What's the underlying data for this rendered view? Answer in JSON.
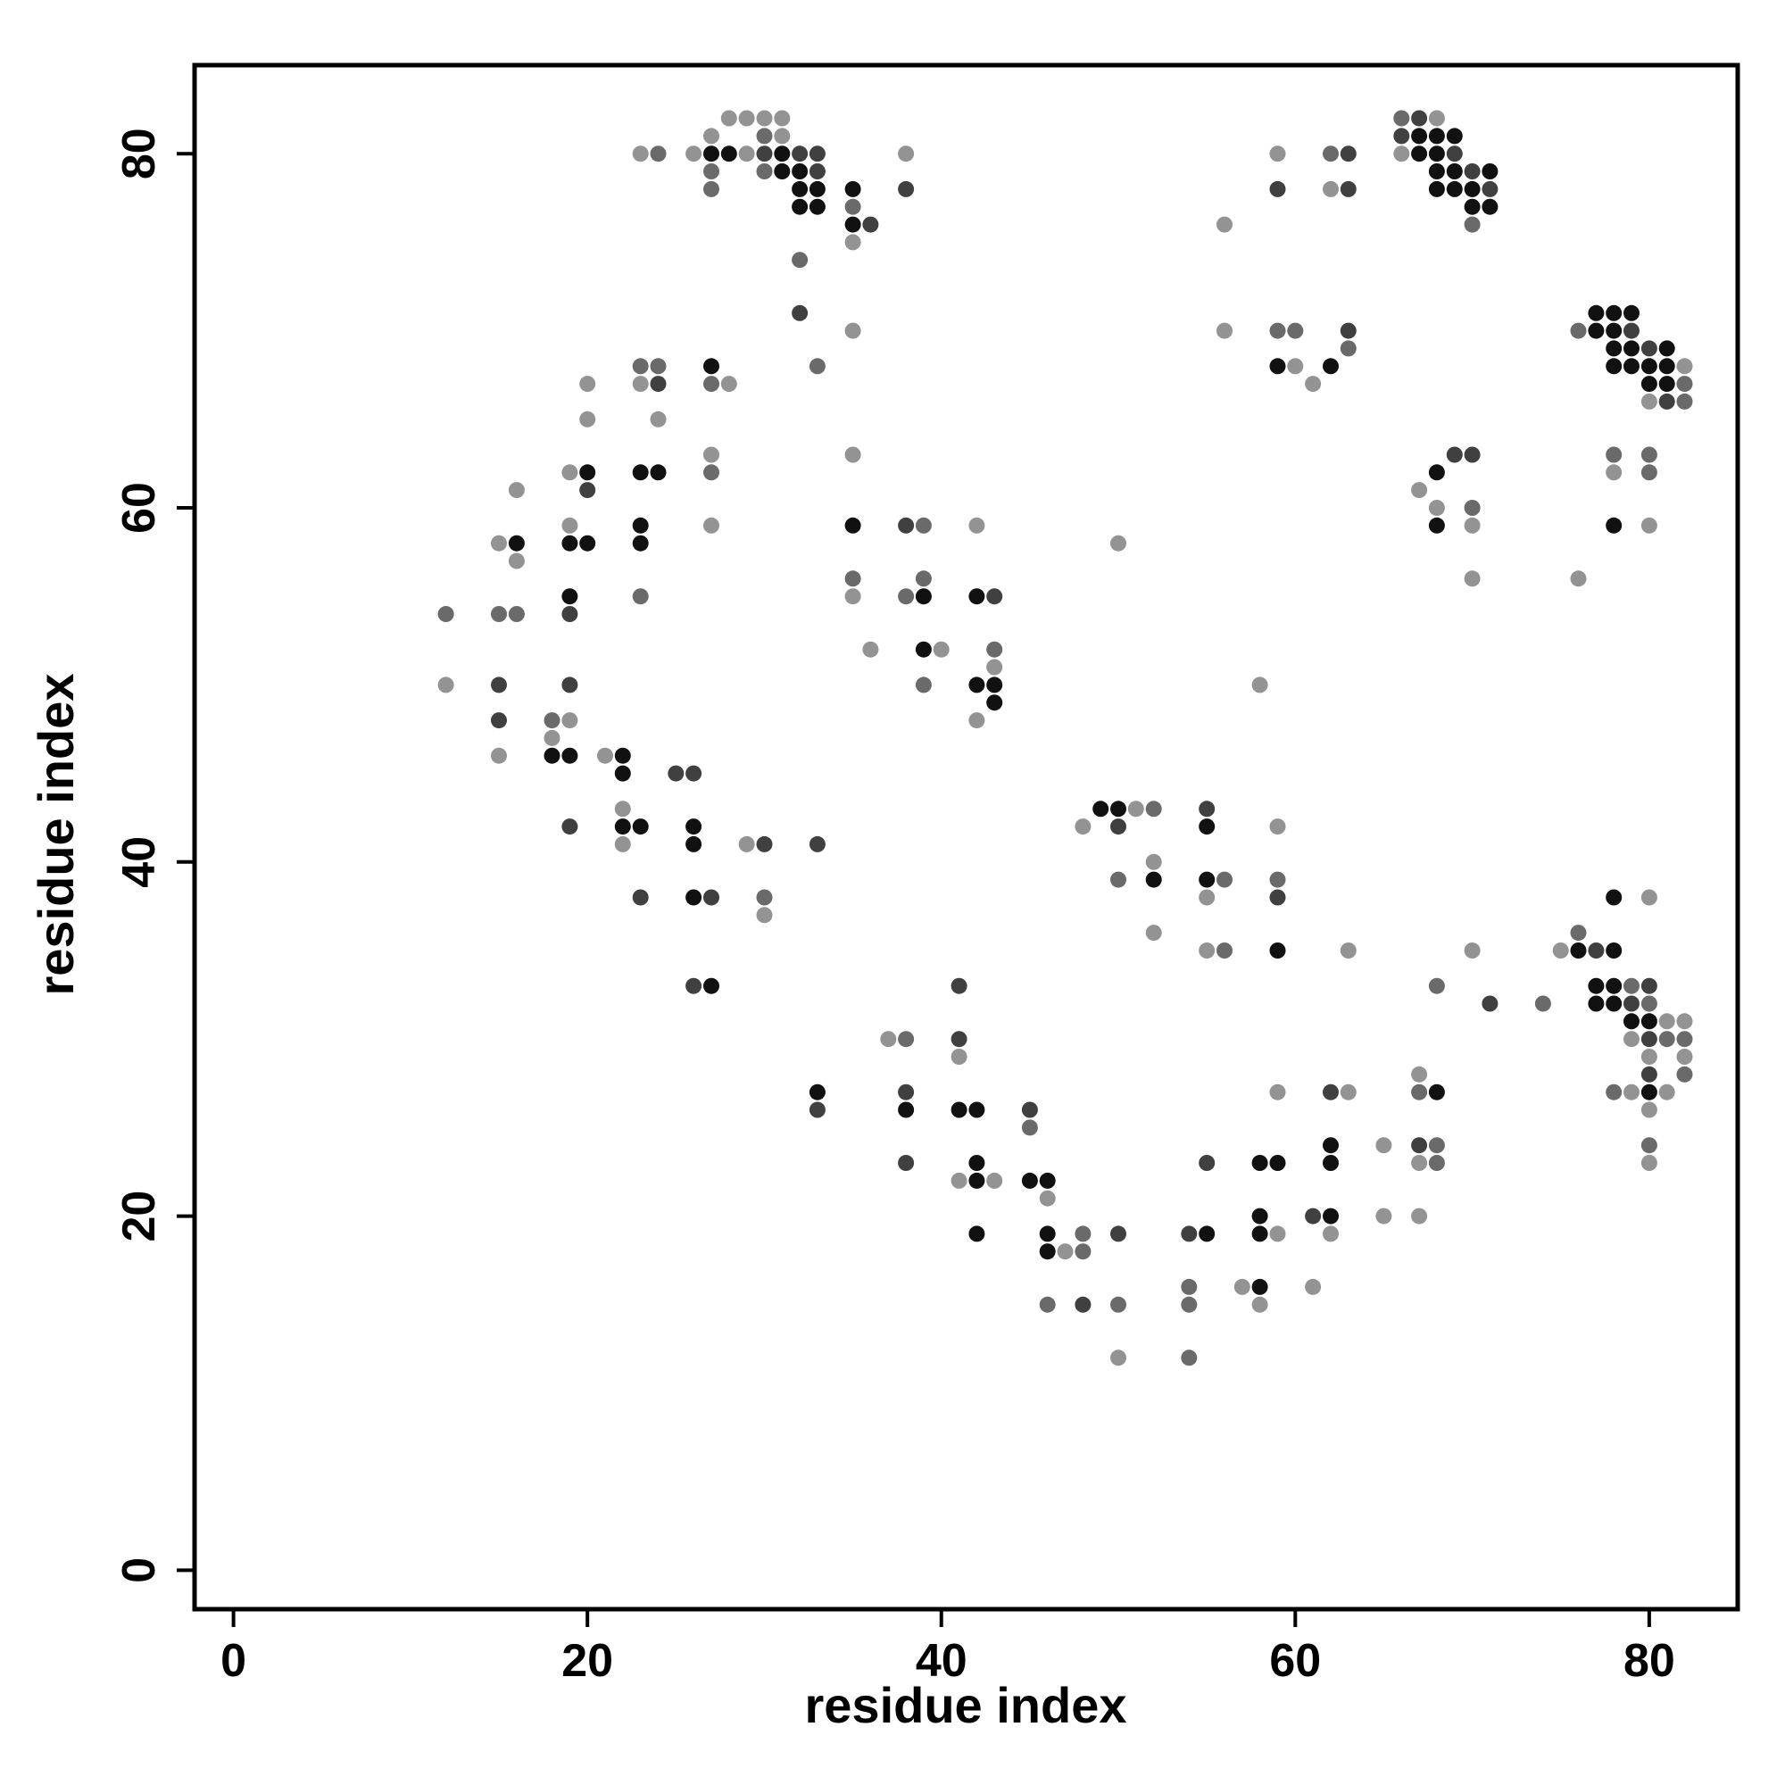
{
  "chart_data": {
    "type": "scatter",
    "title": "",
    "xlabel": "residue index",
    "ylabel": "residue index",
    "xlim": [
      -2.2,
      85
    ],
    "ylim": [
      -2.2,
      85
    ],
    "xticks": [
      "0",
      "20",
      "40",
      "60",
      "80"
    ],
    "yticks": [
      "0",
      "20",
      "40",
      "60",
      "80"
    ],
    "grid": false,
    "legend": "none",
    "shade_colors": {
      "1": "#111111",
      "2": "#404040",
      "3": "#6a6a6a",
      "4": "#939393"
    },
    "points": [
      [
        12,
        54,
        3
      ],
      [
        12,
        50,
        4
      ],
      [
        15,
        58,
        4
      ],
      [
        16,
        58,
        1
      ],
      [
        16,
        57,
        4
      ],
      [
        16,
        61,
        4
      ],
      [
        15,
        54,
        3
      ],
      [
        16,
        54,
        3
      ],
      [
        15,
        50,
        2
      ],
      [
        15,
        48,
        2
      ],
      [
        15,
        46,
        4
      ],
      [
        18,
        48,
        3
      ],
      [
        19,
        48,
        4
      ],
      [
        18,
        47,
        4
      ],
      [
        18,
        46,
        1
      ],
      [
        19,
        46,
        1
      ],
      [
        19,
        42,
        2
      ],
      [
        19,
        50,
        2
      ],
      [
        19,
        54,
        2
      ],
      [
        19,
        55,
        1
      ],
      [
        19,
        58,
        1
      ],
      [
        20,
        58,
        1
      ],
      [
        19,
        59,
        4
      ],
      [
        19,
        62,
        4
      ],
      [
        20,
        62,
        1
      ],
      [
        20,
        61,
        2
      ],
      [
        20,
        65,
        4
      ],
      [
        20,
        67,
        4
      ],
      [
        21,
        46,
        4
      ],
      [
        22,
        46,
        1
      ],
      [
        22,
        45,
        1
      ],
      [
        22,
        43,
        4
      ],
      [
        22,
        42,
        1
      ],
      [
        23,
        42,
        1
      ],
      [
        22,
        41,
        4
      ],
      [
        23,
        38,
        2
      ],
      [
        23,
        55,
        3
      ],
      [
        23,
        58,
        1
      ],
      [
        23,
        59,
        1
      ],
      [
        23,
        62,
        1
      ],
      [
        24,
        62,
        1
      ],
      [
        23,
        67,
        4
      ],
      [
        24,
        67,
        2
      ],
      [
        23,
        68,
        3
      ],
      [
        24,
        68,
        3
      ],
      [
        24,
        65,
        4
      ],
      [
        26,
        45,
        2
      ],
      [
        25,
        45,
        2
      ],
      [
        26,
        42,
        1
      ],
      [
        26,
        41,
        1
      ],
      [
        26,
        38,
        1
      ],
      [
        27,
        38,
        2
      ],
      [
        26,
        33,
        2
      ],
      [
        27,
        33,
        1
      ],
      [
        27,
        59,
        4
      ],
      [
        27,
        62,
        3
      ],
      [
        27,
        63,
        4
      ],
      [
        27,
        67,
        3
      ],
      [
        28,
        67,
        4
      ],
      [
        27,
        68,
        1
      ],
      [
        29,
        41,
        4
      ],
      [
        30,
        41,
        2
      ],
      [
        30,
        38,
        3
      ],
      [
        30,
        37,
        4
      ],
      [
        33,
        41,
        2
      ],
      [
        23,
        80,
        4
      ],
      [
        24,
        80,
        3
      ],
      [
        26,
        80,
        4
      ],
      [
        27,
        80,
        1
      ],
      [
        28,
        80,
        1
      ],
      [
        29,
        80,
        4
      ],
      [
        30,
        80,
        2
      ],
      [
        31,
        80,
        1
      ],
      [
        32,
        80,
        2
      ],
      [
        33,
        80,
        2
      ],
      [
        27,
        81,
        4
      ],
      [
        27,
        79,
        3
      ],
      [
        27,
        78,
        3
      ],
      [
        28,
        82,
        4
      ],
      [
        29,
        82,
        4
      ],
      [
        30,
        82,
        4
      ],
      [
        31,
        82,
        4
      ],
      [
        30,
        81,
        3
      ],
      [
        31,
        81,
        4
      ],
      [
        30,
        79,
        3
      ],
      [
        31,
        79,
        1
      ],
      [
        32,
        79,
        1
      ],
      [
        33,
        79,
        2
      ],
      [
        32,
        78,
        1
      ],
      [
        33,
        78,
        1
      ],
      [
        32,
        77,
        1
      ],
      [
        33,
        77,
        1
      ],
      [
        32,
        74,
        3
      ],
      [
        32,
        71,
        2
      ],
      [
        33,
        68,
        3
      ],
      [
        35,
        78,
        1
      ],
      [
        35,
        77,
        3
      ],
      [
        35,
        76,
        1
      ],
      [
        36,
        76,
        2
      ],
      [
        35,
        75,
        4
      ],
      [
        38,
        80,
        4
      ],
      [
        38,
        78,
        2
      ],
      [
        35,
        70,
        4
      ],
      [
        35,
        63,
        4
      ],
      [
        35,
        59,
        1
      ],
      [
        35,
        56,
        3
      ],
      [
        35,
        55,
        4
      ],
      [
        36,
        52,
        4
      ],
      [
        38,
        59,
        2
      ],
      [
        39,
        59,
        3
      ],
      [
        38,
        55,
        3
      ],
      [
        39,
        55,
        1
      ],
      [
        39,
        56,
        3
      ],
      [
        39,
        52,
        1
      ],
      [
        40,
        52,
        4
      ],
      [
        39,
        50,
        3
      ],
      [
        42,
        59,
        4
      ],
      [
        42,
        55,
        1
      ],
      [
        43,
        55,
        2
      ],
      [
        43,
        52,
        3
      ],
      [
        43,
        51,
        4
      ],
      [
        42,
        50,
        1
      ],
      [
        43,
        50,
        1
      ],
      [
        43,
        49,
        1
      ],
      [
        42,
        48,
        4
      ],
      [
        33,
        27,
        1
      ],
      [
        33,
        26,
        2
      ],
      [
        37,
        30,
        4
      ],
      [
        38,
        30,
        3
      ],
      [
        38,
        27,
        2
      ],
      [
        38,
        26,
        1
      ],
      [
        38,
        23,
        2
      ],
      [
        41,
        33,
        2
      ],
      [
        41,
        30,
        2
      ],
      [
        41,
        29,
        4
      ],
      [
        41,
        26,
        1
      ],
      [
        42,
        26,
        1
      ],
      [
        42,
        23,
        1
      ],
      [
        42,
        22,
        1
      ],
      [
        41,
        22,
        4
      ],
      [
        43,
        22,
        4
      ],
      [
        42,
        19,
        1
      ],
      [
        45,
        26,
        2
      ],
      [
        45,
        25,
        3
      ],
      [
        45,
        22,
        1
      ],
      [
        46,
        22,
        1
      ],
      [
        46,
        21,
        4
      ],
      [
        46,
        19,
        1
      ],
      [
        46,
        18,
        1
      ],
      [
        47,
        18,
        4
      ],
      [
        48,
        18,
        3
      ],
      [
        48,
        19,
        3
      ],
      [
        50,
        19,
        2
      ],
      [
        46,
        15,
        3
      ],
      [
        48,
        15,
        2
      ],
      [
        50,
        15,
        3
      ],
      [
        50,
        12,
        4
      ],
      [
        54,
        19,
        2
      ],
      [
        55,
        19,
        1
      ],
      [
        54,
        16,
        3
      ],
      [
        54,
        15,
        3
      ],
      [
        54,
        12,
        3
      ],
      [
        57,
        16,
        4
      ],
      [
        58,
        16,
        1
      ],
      [
        58,
        15,
        4
      ],
      [
        55,
        23,
        2
      ],
      [
        58,
        23,
        1
      ],
      [
        59,
        23,
        1
      ],
      [
        58,
        20,
        1
      ],
      [
        58,
        19,
        1
      ],
      [
        59,
        19,
        4
      ],
      [
        61,
        20,
        2
      ],
      [
        62,
        20,
        1
      ],
      [
        62,
        19,
        4
      ],
      [
        61,
        16,
        4
      ],
      [
        62,
        23,
        1
      ],
      [
        62,
        24,
        1
      ],
      [
        62,
        27,
        2
      ],
      [
        63,
        27,
        4
      ],
      [
        59,
        27,
        4
      ],
      [
        65,
        24,
        4
      ],
      [
        65,
        20,
        4
      ],
      [
        67,
        20,
        4
      ],
      [
        67,
        23,
        4
      ],
      [
        68,
        23,
        3
      ],
      [
        67,
        24,
        2
      ],
      [
        68,
        24,
        3
      ],
      [
        67,
        27,
        3
      ],
      [
        68,
        27,
        1
      ],
      [
        67,
        28,
        4
      ],
      [
        49,
        43,
        1
      ],
      [
        50,
        43,
        1
      ],
      [
        51,
        43,
        4
      ],
      [
        52,
        43,
        3
      ],
      [
        48,
        42,
        4
      ],
      [
        50,
        42,
        2
      ],
      [
        52,
        40,
        4
      ],
      [
        52,
        39,
        1
      ],
      [
        50,
        39,
        3
      ],
      [
        52,
        36,
        4
      ],
      [
        55,
        43,
        2
      ],
      [
        55,
        42,
        1
      ],
      [
        55,
        39,
        1
      ],
      [
        56,
        39,
        3
      ],
      [
        55,
        38,
        4
      ],
      [
        55,
        35,
        4
      ],
      [
        56,
        35,
        3
      ],
      [
        59,
        42,
        4
      ],
      [
        59,
        39,
        3
      ],
      [
        59,
        38,
        2
      ],
      [
        59,
        35,
        1
      ],
      [
        63,
        35,
        4
      ],
      [
        58,
        50,
        4
      ],
      [
        50,
        58,
        4
      ],
      [
        76,
        36,
        3
      ],
      [
        75,
        35,
        4
      ],
      [
        76,
        35,
        1
      ],
      [
        77,
        35,
        2
      ],
      [
        78,
        35,
        1
      ],
      [
        78,
        38,
        1
      ],
      [
        77,
        33,
        1
      ],
      [
        78,
        33,
        1
      ],
      [
        79,
        33,
        3
      ],
      [
        80,
        33,
        2
      ],
      [
        77,
        32,
        1
      ],
      [
        78,
        32,
        1
      ],
      [
        79,
        32,
        2
      ],
      [
        80,
        32,
        3
      ],
      [
        79,
        31,
        1
      ],
      [
        80,
        31,
        1
      ],
      [
        81,
        31,
        4
      ],
      [
        82,
        31,
        4
      ],
      [
        79,
        30,
        4
      ],
      [
        80,
        30,
        2
      ],
      [
        81,
        30,
        3
      ],
      [
        82,
        30,
        3
      ],
      [
        80,
        29,
        4
      ],
      [
        82,
        29,
        4
      ],
      [
        80,
        28,
        2
      ],
      [
        82,
        28,
        3
      ],
      [
        78,
        27,
        3
      ],
      [
        79,
        27,
        4
      ],
      [
        80,
        27,
        1
      ],
      [
        81,
        27,
        4
      ],
      [
        80,
        26,
        4
      ],
      [
        80,
        24,
        3
      ],
      [
        80,
        23,
        4
      ],
      [
        80,
        38,
        4
      ],
      [
        74,
        32,
        3
      ],
      [
        71,
        32,
        2
      ],
      [
        70,
        35,
        4
      ],
      [
        68,
        33,
        3
      ],
      [
        66,
        82,
        3
      ],
      [
        67,
        82,
        2
      ],
      [
        68,
        82,
        4
      ],
      [
        66,
        81,
        2
      ],
      [
        67,
        81,
        1
      ],
      [
        68,
        81,
        1
      ],
      [
        69,
        81,
        1
      ],
      [
        66,
        80,
        4
      ],
      [
        67,
        80,
        1
      ],
      [
        68,
        80,
        1
      ],
      [
        69,
        80,
        2
      ],
      [
        68,
        79,
        1
      ],
      [
        69,
        79,
        1
      ],
      [
        70,
        79,
        2
      ],
      [
        71,
        79,
        1
      ],
      [
        68,
        78,
        1
      ],
      [
        69,
        78,
        1
      ],
      [
        70,
        78,
        1
      ],
      [
        71,
        78,
        2
      ],
      [
        70,
        77,
        1
      ],
      [
        71,
        77,
        1
      ],
      [
        70,
        76,
        3
      ],
      [
        59,
        80,
        4
      ],
      [
        62,
        80,
        3
      ],
      [
        63,
        80,
        2
      ],
      [
        59,
        78,
        2
      ],
      [
        62,
        78,
        4
      ],
      [
        63,
        78,
        2
      ],
      [
        56,
        76,
        4
      ],
      [
        56,
        70,
        4
      ],
      [
        59,
        70,
        3
      ],
      [
        60,
        70,
        3
      ],
      [
        63,
        70,
        2
      ],
      [
        63,
        69,
        3
      ],
      [
        59,
        68,
        1
      ],
      [
        60,
        68,
        4
      ],
      [
        62,
        68,
        1
      ],
      [
        61,
        67,
        4
      ],
      [
        76,
        70,
        3
      ],
      [
        77,
        71,
        1
      ],
      [
        78,
        71,
        1
      ],
      [
        79,
        71,
        1
      ],
      [
        77,
        70,
        1
      ],
      [
        78,
        70,
        1
      ],
      [
        79,
        70,
        2
      ],
      [
        78,
        69,
        1
      ],
      [
        79,
        69,
        1
      ],
      [
        80,
        69,
        2
      ],
      [
        81,
        69,
        1
      ],
      [
        78,
        68,
        1
      ],
      [
        79,
        68,
        1
      ],
      [
        80,
        68,
        1
      ],
      [
        81,
        68,
        1
      ],
      [
        82,
        68,
        4
      ],
      [
        80,
        67,
        1
      ],
      [
        81,
        67,
        1
      ],
      [
        82,
        67,
        3
      ],
      [
        80,
        66,
        4
      ],
      [
        81,
        66,
        2
      ],
      [
        82,
        66,
        3
      ],
      [
        78,
        63,
        3
      ],
      [
        80,
        63,
        3
      ],
      [
        78,
        62,
        4
      ],
      [
        80,
        62,
        3
      ],
      [
        78,
        59,
        1
      ],
      [
        80,
        59,
        4
      ],
      [
        76,
        56,
        4
      ],
      [
        67,
        61,
        4
      ],
      [
        68,
        62,
        1
      ],
      [
        69,
        63,
        2
      ],
      [
        70,
        63,
        2
      ],
      [
        68,
        60,
        4
      ],
      [
        70,
        60,
        3
      ],
      [
        68,
        59,
        1
      ],
      [
        70,
        59,
        4
      ],
      [
        70,
        56,
        4
      ]
    ]
  }
}
